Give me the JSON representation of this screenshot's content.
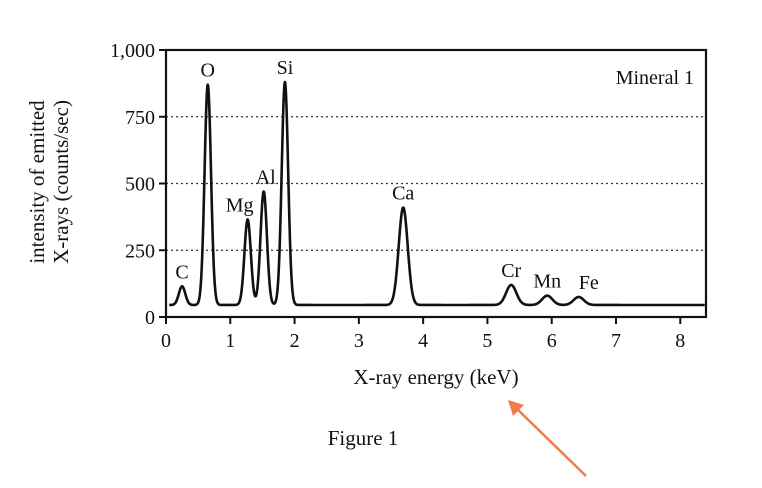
{
  "figure_caption": "Figure 1",
  "arrow_color": "#f07c4a",
  "chart_data": {
    "type": "line",
    "panel_label": "Mineral 1",
    "xlabel": "X-ray energy (keV)",
    "ylabel_line1": "intensity of emitted",
    "ylabel_line2": "X-rays (counts/sec)",
    "xlim": [
      0,
      8.4
    ],
    "ylim": [
      0,
      1000
    ],
    "xticks": [
      0,
      1,
      2,
      3,
      4,
      5,
      6,
      7,
      8
    ],
    "xtick_labels": [
      "0",
      "1",
      "2",
      "3",
      "4",
      "5",
      "6",
      "7",
      "8"
    ],
    "yticks": [
      0,
      250,
      500,
      750,
      1000
    ],
    "ytick_labels": [
      "0",
      "250",
      "500",
      "750",
      "1,000"
    ],
    "grid_y": [
      250,
      500,
      750
    ],
    "grid": "dotted horizontal",
    "baseline": 45,
    "peaks": [
      {
        "label": "C",
        "x": 0.25,
        "y": 115
      },
      {
        "label": "O",
        "x": 0.65,
        "y": 870
      },
      {
        "label": "Mg",
        "x": 1.27,
        "y": 365
      },
      {
        "label": "Al",
        "x": 1.52,
        "y": 470
      },
      {
        "label": "Si",
        "x": 1.85,
        "y": 880
      },
      {
        "label": "Ca",
        "x": 3.69,
        "y": 410
      },
      {
        "label": "Cr",
        "x": 5.37,
        "y": 120
      },
      {
        "label": "Mn",
        "x": 5.93,
        "y": 80
      },
      {
        "label": "Fe",
        "x": 6.42,
        "y": 75
      }
    ]
  }
}
